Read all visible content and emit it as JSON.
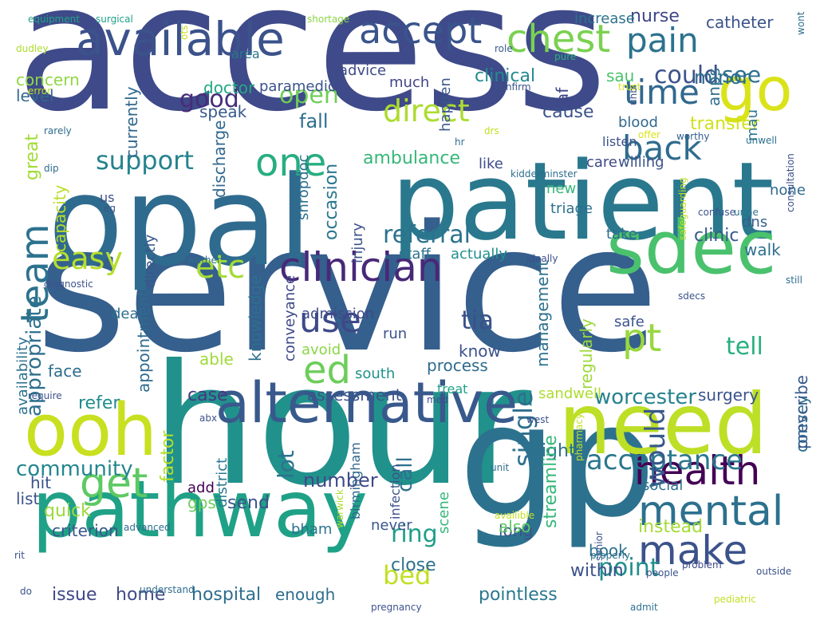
{
  "words": [
    {
      "text": "access",
      "color": "#3e4a89"
    },
    {
      "text": "service",
      "color": "#355f8d"
    },
    {
      "text": "hour",
      "color": "#21918c"
    },
    {
      "text": "gp",
      "color": "#2c728e"
    },
    {
      "text": "opal",
      "color": "#2f6b8e"
    },
    {
      "text": "patient",
      "color": "#2a788e"
    },
    {
      "text": "pathway",
      "color": "#1fa187"
    },
    {
      "text": "need",
      "color": "#bddf26"
    },
    {
      "text": "ooh",
      "color": "#c8e020"
    },
    {
      "text": "alternative",
      "color": "#38598c"
    },
    {
      "text": "sdec",
      "color": "#4ac16d"
    },
    {
      "text": "available",
      "color": "#3b528b"
    },
    {
      "text": "go",
      "color": "#dae319"
    },
    {
      "text": "chest",
      "color": "#7ad151"
    },
    {
      "text": "accept",
      "color": "#3a548c"
    },
    {
      "text": "pain",
      "color": "#2c728e"
    },
    {
      "text": "clinician",
      "color": "#482878"
    },
    {
      "text": "time",
      "color": "#31688e"
    },
    {
      "text": "back",
      "color": "#2f6c8e"
    },
    {
      "text": "mental",
      "color": "#2c718e"
    },
    {
      "text": "health",
      "color": "#440154"
    },
    {
      "text": "make",
      "color": "#3b528b"
    },
    {
      "text": "team",
      "color": "#2c728e"
    },
    {
      "text": "easy",
      "color": "#b5de2b"
    },
    {
      "text": "get",
      "color": "#5ec962"
    },
    {
      "text": "ed",
      "color": "#6ccd5a"
    },
    {
      "text": "pt",
      "color": "#98d83e"
    },
    {
      "text": "one",
      "color": "#27ad81"
    },
    {
      "text": "etc",
      "color": "#a5db36"
    },
    {
      "text": "use",
      "color": "#3e4989"
    },
    {
      "text": "acceptance",
      "color": "#2a778e"
    },
    {
      "text": "support",
      "color": "#25838e"
    },
    {
      "text": "referral",
      "color": "#2c728e"
    },
    {
      "text": "direct",
      "color": "#addc30"
    },
    {
      "text": "open",
      "color": "#6ece58"
    },
    {
      "text": "could",
      "color": "#3b528b"
    },
    {
      "text": "good",
      "color": "#472c7a"
    },
    {
      "text": "see",
      "color": "#2d718e"
    },
    {
      "text": "would",
      "color": "#38588c"
    },
    {
      "text": "tell",
      "color": "#29af7f"
    },
    {
      "text": "tia",
      "color": "#3b518b"
    },
    {
      "text": "single",
      "color": "#2d708e"
    },
    {
      "text": "ring",
      "color": "#1f9e89"
    },
    {
      "text": "bed",
      "color": "#c2df23"
    },
    {
      "text": "point",
      "color": "#21908d"
    },
    {
      "text": "community",
      "color": "#24868e"
    },
    {
      "text": "minor",
      "color": "#2e6d8e"
    },
    {
      "text": "fall",
      "color": "#2e6e8e"
    },
    {
      "text": "transfer",
      "color": "#d0e11c"
    },
    {
      "text": "concern",
      "color": "#8fd744"
    },
    {
      "text": "speak",
      "color": "#38598c"
    },
    {
      "text": "cause",
      "color": "#3b528b"
    },
    {
      "text": "clinical",
      "color": "#23898e"
    },
    {
      "text": "nurse",
      "color": "#3f4788"
    },
    {
      "text": "level",
      "color": "#31688e"
    },
    {
      "text": "doctor",
      "color": "#22a884"
    },
    {
      "text": "paramedic",
      "color": "#3b528b"
    },
    {
      "text": "much",
      "color": "#414487"
    },
    {
      "text": "ambulance",
      "color": "#35b779"
    },
    {
      "text": "af",
      "color": "#404688"
    },
    {
      "text": "sau",
      "color": "#4ac16d"
    },
    {
      "text": "anps",
      "color": "#2e6f8e"
    },
    {
      "text": "blood",
      "color": "#30698e"
    },
    {
      "text": "mau",
      "color": "#2b758e"
    },
    {
      "text": "catheter",
      "color": "#3b528b"
    },
    {
      "text": "increase",
      "color": "#2c738e"
    },
    {
      "text": "advice",
      "color": "#3e4a89"
    },
    {
      "text": "area",
      "color": "#2a768e"
    },
    {
      "text": "happen",
      "color": "#39568c"
    },
    {
      "text": "great",
      "color": "#a2da37"
    },
    {
      "text": "currently",
      "color": "#31688e"
    },
    {
      "text": "capacity",
      "color": "#bade28"
    },
    {
      "text": "appropriate",
      "color": "#2d708e"
    },
    {
      "text": "discharge",
      "color": "#31688e"
    },
    {
      "text": "appointment",
      "color": "#2f6b8e"
    },
    {
      "text": "deal",
      "color": "#2e6e8e"
    },
    {
      "text": "face",
      "color": "#2e6d8e"
    },
    {
      "text": "able",
      "color": "#9fda3a"
    },
    {
      "text": "case",
      "color": "#443983"
    },
    {
      "text": "refer",
      "color": "#228c8d"
    },
    {
      "text": "occasion",
      "color": "#2a778e"
    },
    {
      "text": "injury",
      "color": "#3b528b"
    },
    {
      "text": "knowledge",
      "color": "#2e6f8e"
    },
    {
      "text": "conveyance",
      "color": "#3f4889"
    },
    {
      "text": "admission",
      "color": "#3e4a89"
    },
    {
      "text": "avoid",
      "color": "#8bd646"
    },
    {
      "text": "south",
      "color": "#20928c"
    },
    {
      "text": "assessment",
      "color": "#3a548c"
    },
    {
      "text": "process",
      "color": "#2f6b8e"
    },
    {
      "text": "know",
      "color": "#3b528b"
    },
    {
      "text": "run",
      "color": "#3a538b"
    },
    {
      "text": "management",
      "color": "#2d718e"
    },
    {
      "text": "regularly",
      "color": "#9dd93b"
    },
    {
      "text": "safe",
      "color": "#3b528b"
    },
    {
      "text": "walk",
      "color": "#2d708e"
    },
    {
      "text": "dns",
      "color": "#35608d"
    },
    {
      "text": "clinic",
      "color": "#38588c"
    },
    {
      "text": "take",
      "color": "#2f6c8e"
    },
    {
      "text": "triage",
      "color": "#2d708e"
    },
    {
      "text": "new",
      "color": "#35b779"
    },
    {
      "text": "none",
      "color": "#30698e"
    },
    {
      "text": "like",
      "color": "#3e4a89"
    },
    {
      "text": "staff",
      "color": "#2c718e"
    },
    {
      "text": "actually",
      "color": "#21908d"
    },
    {
      "text": "care",
      "color": "#3f4889"
    },
    {
      "text": "listen",
      "color": "#3b528b"
    },
    {
      "text": "willing",
      "color": "#3b528b"
    },
    {
      "text": "worcester",
      "color": "#26828e"
    },
    {
      "text": "surgery",
      "color": "#3b528b"
    },
    {
      "text": "sandwell",
      "color": "#addc30"
    },
    {
      "text": "convey",
      "color": "#2d708e"
    },
    {
      "text": "prescribe",
      "color": "#38588c"
    },
    {
      "text": "night",
      "color": "#2d718e"
    },
    {
      "text": "lot",
      "color": "#2c738e"
    },
    {
      "text": "call",
      "color": "#2e6f8e"
    },
    {
      "text": "number",
      "color": "#3e4a89"
    },
    {
      "text": "send",
      "color": "#3b528b"
    },
    {
      "text": "criterion",
      "color": "#39568c"
    },
    {
      "text": "quick",
      "color": "#9bd93c"
    },
    {
      "text": "list",
      "color": "#3b528b"
    },
    {
      "text": "hit",
      "color": "#3b528b"
    },
    {
      "text": "add",
      "color": "#440154"
    },
    {
      "text": "gps",
      "color": "#6ccd5a"
    },
    {
      "text": "district",
      "color": "#2a778e"
    },
    {
      "text": "bham",
      "color": "#2c738e"
    },
    {
      "text": "hospital",
      "color": "#2e6e8e"
    },
    {
      "text": "home",
      "color": "#3e4a89"
    },
    {
      "text": "issue",
      "color": "#3f4788"
    },
    {
      "text": "enough",
      "color": "#2e6f8e"
    },
    {
      "text": "close",
      "color": "#2d718e"
    },
    {
      "text": "within",
      "color": "#3b528b"
    },
    {
      "text": "pointless",
      "color": "#2a788e"
    },
    {
      "text": "instead",
      "color": "#a5db36"
    },
    {
      "text": "book",
      "color": "#2c728e"
    },
    {
      "text": "long",
      "color": "#3b528b"
    },
    {
      "text": "also",
      "color": "#5ec962"
    },
    {
      "text": "streamline",
      "color": "#35b779"
    },
    {
      "text": "never",
      "color": "#39568c"
    },
    {
      "text": "scene",
      "color": "#35b779"
    },
    {
      "text": "birmingham",
      "color": "#31688e"
    },
    {
      "text": "infection",
      "color": "#3b528b"
    },
    {
      "text": "treat",
      "color": "#1fa187"
    },
    {
      "text": "social",
      "color": "#2c728e"
    },
    {
      "text": "factor",
      "color": "#b5de2b"
    },
    {
      "text": "directly",
      "color": "#38588c"
    },
    {
      "text": "availability",
      "color": "#2c728e"
    },
    {
      "text": "us",
      "color": "#3b528b"
    },
    {
      "text": "shropdoc",
      "color": "#2c718e"
    },
    {
      "text": "equipment",
      "color": "#20a386"
    },
    {
      "text": "surgical",
      "color": "#1f9f88"
    },
    {
      "text": "shortage",
      "color": "#8bd646"
    },
    {
      "text": "ots",
      "color": "#c8e020"
    },
    {
      "text": "dudley",
      "color": "#addc30"
    },
    {
      "text": "role",
      "color": "#38598c"
    },
    {
      "text": "pure",
      "color": "#2ab07f"
    },
    {
      "text": "wont",
      "color": "#2e6f8e"
    },
    {
      "text": "error",
      "color": "#c2df23"
    },
    {
      "text": "confirm",
      "color": "#3b528b"
    },
    {
      "text": "trust",
      "color": "#d8e219"
    },
    {
      "text": "uhb",
      "color": "#3b528b"
    },
    {
      "text": "rarely",
      "color": "#2e6d8e"
    },
    {
      "text": "drs",
      "color": "#c2df23"
    },
    {
      "text": "hr",
      "color": "#2e6e8e"
    },
    {
      "text": "worthy",
      "color": "#35608d"
    },
    {
      "text": "offer",
      "color": "#dae319"
    },
    {
      "text": "unwell",
      "color": "#2c728e"
    },
    {
      "text": "consultation",
      "color": "#3b528b"
    },
    {
      "text": "dip",
      "color": "#2e6e8e"
    },
    {
      "text": "kidderminster",
      "color": "#2e6d8e"
    },
    {
      "text": "eg",
      "color": "#39568c"
    },
    {
      "text": "safeguarding",
      "color": "#c2df23"
    },
    {
      "text": "confuse",
      "color": "#3b528b"
    },
    {
      "text": "urine",
      "color": "#2c728e"
    },
    {
      "text": "wether",
      "color": "#2e6f8e"
    },
    {
      "text": "ideally",
      "color": "#3b528b"
    },
    {
      "text": "still",
      "color": "#2e6e8e"
    },
    {
      "text": "diagnostic",
      "color": "#3b528b"
    },
    {
      "text": "sdecs",
      "color": "#3b528b"
    },
    {
      "text": "require",
      "color": "#3b528b"
    },
    {
      "text": "med",
      "color": "#3e4a89"
    },
    {
      "text": "abx",
      "color": "#3b528b"
    },
    {
      "text": "west",
      "color": "#3b528b"
    },
    {
      "text": "pharmacy",
      "color": "#c2df23"
    },
    {
      "text": "unit",
      "color": "#2e6e8e"
    },
    {
      "text": "warwick",
      "color": "#addc30"
    },
    {
      "text": "availible",
      "color": "#c2df23"
    },
    {
      "text": "advanced",
      "color": "#2e6e8e"
    },
    {
      "text": "senior",
      "color": "#3b528b"
    },
    {
      "text": "rit",
      "color": "#3b528b"
    },
    {
      "text": "properly",
      "color": "#2c718e"
    },
    {
      "text": "problem",
      "color": "#3e4a89"
    },
    {
      "text": "people",
      "color": "#3b528b"
    },
    {
      "text": "outside",
      "color": "#3b528b"
    },
    {
      "text": "do",
      "color": "#3b528b"
    },
    {
      "text": "understand",
      "color": "#2e6e8e"
    },
    {
      "text": "pregnancy",
      "color": "#3b528b"
    },
    {
      "text": "admit",
      "color": "#2c718e"
    },
    {
      "text": "pediatric",
      "color": "#c2df23"
    }
  ]
}
